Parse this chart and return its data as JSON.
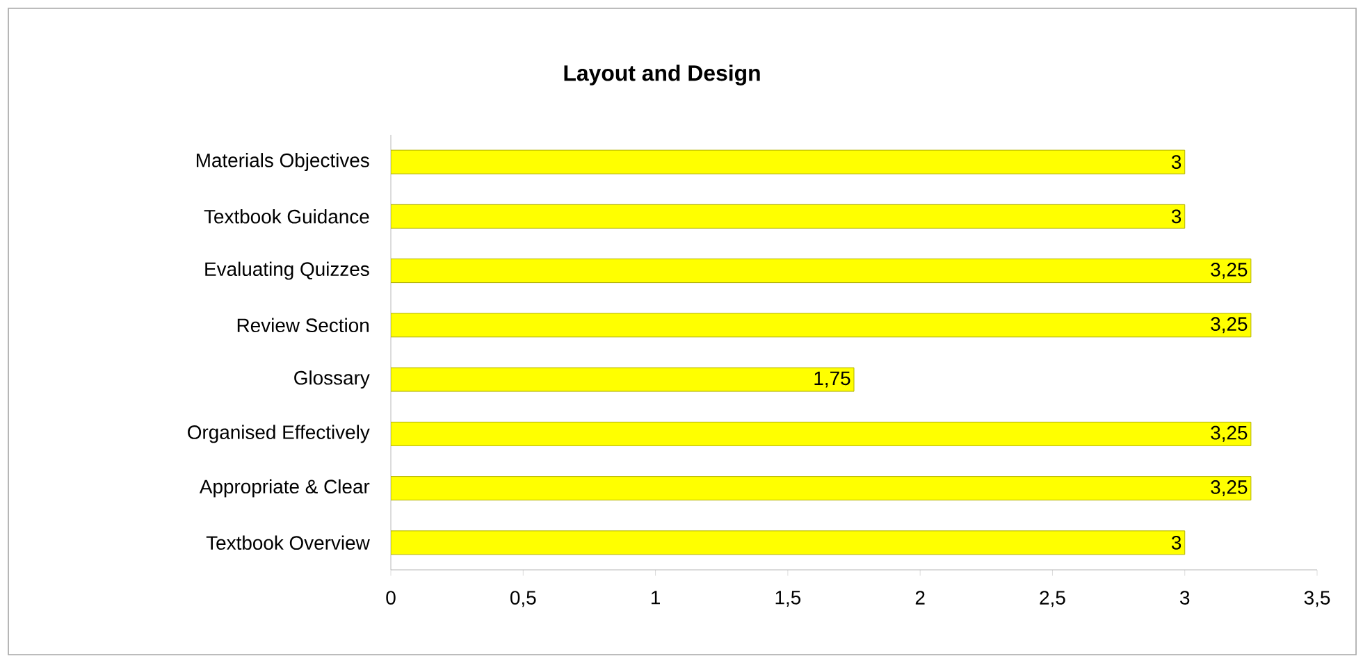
{
  "chart_data": {
    "type": "bar",
    "orientation": "horizontal",
    "title": "Layout and Design",
    "categories": [
      "Materials Objectives",
      "Textbook Guidance",
      "Evaluating Quizzes",
      "Review Section",
      "Glossary",
      "Organised Effectively",
      "Appropriate & Clear",
      "Textbook Overview"
    ],
    "values": [
      3,
      3,
      3.25,
      3.25,
      1.75,
      3.25,
      3.25,
      3
    ],
    "value_labels": [
      "3",
      "3",
      "3,25",
      "3,25",
      "1,75",
      "3,25",
      "3,25",
      "3"
    ],
    "color": "#ffff00",
    "xlim": [
      0,
      3.5
    ],
    "xticks": [
      0,
      {
        "value": 0.5,
        "label": "0,5"
      },
      1,
      {
        "value": 1.5,
        "label": "1,5"
      },
      2,
      {
        "value": 2.5,
        "label": "2,5"
      },
      3,
      {
        "value": 3.5,
        "label": "3,5"
      }
    ],
    "grid": false
  }
}
